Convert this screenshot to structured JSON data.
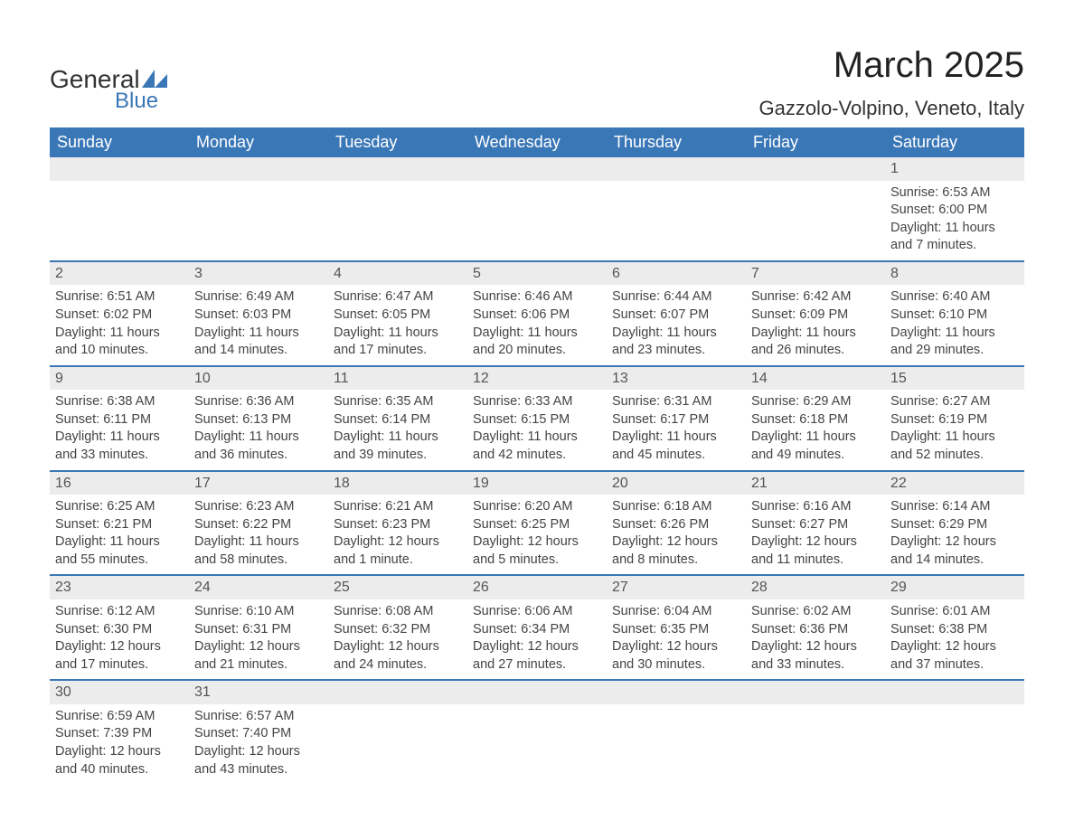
{
  "logo": {
    "text1": "General",
    "text2": "Blue",
    "accent_color": "#3a77b7"
  },
  "title": "March 2025",
  "location": "Gazzolo-Volpino, Veneto, Italy",
  "colors": {
    "header_bg": "#3a77b7",
    "header_text": "#ffffff",
    "daynum_bg": "#ececec",
    "row_border": "#3a77b7",
    "body_text": "#444444"
  },
  "day_headers": [
    "Sunday",
    "Monday",
    "Tuesday",
    "Wednesday",
    "Thursday",
    "Friday",
    "Saturday"
  ],
  "weeks": [
    [
      null,
      null,
      null,
      null,
      null,
      null,
      {
        "n": "1",
        "sunrise": "6:53 AM",
        "sunset": "6:00 PM",
        "daylight": "11 hours and 7 minutes."
      }
    ],
    [
      {
        "n": "2",
        "sunrise": "6:51 AM",
        "sunset": "6:02 PM",
        "daylight": "11 hours and 10 minutes."
      },
      {
        "n": "3",
        "sunrise": "6:49 AM",
        "sunset": "6:03 PM",
        "daylight": "11 hours and 14 minutes."
      },
      {
        "n": "4",
        "sunrise": "6:47 AM",
        "sunset": "6:05 PM",
        "daylight": "11 hours and 17 minutes."
      },
      {
        "n": "5",
        "sunrise": "6:46 AM",
        "sunset": "6:06 PM",
        "daylight": "11 hours and 20 minutes."
      },
      {
        "n": "6",
        "sunrise": "6:44 AM",
        "sunset": "6:07 PM",
        "daylight": "11 hours and 23 minutes."
      },
      {
        "n": "7",
        "sunrise": "6:42 AM",
        "sunset": "6:09 PM",
        "daylight": "11 hours and 26 minutes."
      },
      {
        "n": "8",
        "sunrise": "6:40 AM",
        "sunset": "6:10 PM",
        "daylight": "11 hours and 29 minutes."
      }
    ],
    [
      {
        "n": "9",
        "sunrise": "6:38 AM",
        "sunset": "6:11 PM",
        "daylight": "11 hours and 33 minutes."
      },
      {
        "n": "10",
        "sunrise": "6:36 AM",
        "sunset": "6:13 PM",
        "daylight": "11 hours and 36 minutes."
      },
      {
        "n": "11",
        "sunrise": "6:35 AM",
        "sunset": "6:14 PM",
        "daylight": "11 hours and 39 minutes."
      },
      {
        "n": "12",
        "sunrise": "6:33 AM",
        "sunset": "6:15 PM",
        "daylight": "11 hours and 42 minutes."
      },
      {
        "n": "13",
        "sunrise": "6:31 AM",
        "sunset": "6:17 PM",
        "daylight": "11 hours and 45 minutes."
      },
      {
        "n": "14",
        "sunrise": "6:29 AM",
        "sunset": "6:18 PM",
        "daylight": "11 hours and 49 minutes."
      },
      {
        "n": "15",
        "sunrise": "6:27 AM",
        "sunset": "6:19 PM",
        "daylight": "11 hours and 52 minutes."
      }
    ],
    [
      {
        "n": "16",
        "sunrise": "6:25 AM",
        "sunset": "6:21 PM",
        "daylight": "11 hours and 55 minutes."
      },
      {
        "n": "17",
        "sunrise": "6:23 AM",
        "sunset": "6:22 PM",
        "daylight": "11 hours and 58 minutes."
      },
      {
        "n": "18",
        "sunrise": "6:21 AM",
        "sunset": "6:23 PM",
        "daylight": "12 hours and 1 minute."
      },
      {
        "n": "19",
        "sunrise": "6:20 AM",
        "sunset": "6:25 PM",
        "daylight": "12 hours and 5 minutes."
      },
      {
        "n": "20",
        "sunrise": "6:18 AM",
        "sunset": "6:26 PM",
        "daylight": "12 hours and 8 minutes."
      },
      {
        "n": "21",
        "sunrise": "6:16 AM",
        "sunset": "6:27 PM",
        "daylight": "12 hours and 11 minutes."
      },
      {
        "n": "22",
        "sunrise": "6:14 AM",
        "sunset": "6:29 PM",
        "daylight": "12 hours and 14 minutes."
      }
    ],
    [
      {
        "n": "23",
        "sunrise": "6:12 AM",
        "sunset": "6:30 PM",
        "daylight": "12 hours and 17 minutes."
      },
      {
        "n": "24",
        "sunrise": "6:10 AM",
        "sunset": "6:31 PM",
        "daylight": "12 hours and 21 minutes."
      },
      {
        "n": "25",
        "sunrise": "6:08 AM",
        "sunset": "6:32 PM",
        "daylight": "12 hours and 24 minutes."
      },
      {
        "n": "26",
        "sunrise": "6:06 AM",
        "sunset": "6:34 PM",
        "daylight": "12 hours and 27 minutes."
      },
      {
        "n": "27",
        "sunrise": "6:04 AM",
        "sunset": "6:35 PM",
        "daylight": "12 hours and 30 minutes."
      },
      {
        "n": "28",
        "sunrise": "6:02 AM",
        "sunset": "6:36 PM",
        "daylight": "12 hours and 33 minutes."
      },
      {
        "n": "29",
        "sunrise": "6:01 AM",
        "sunset": "6:38 PM",
        "daylight": "12 hours and 37 minutes."
      }
    ],
    [
      {
        "n": "30",
        "sunrise": "6:59 AM",
        "sunset": "7:39 PM",
        "daylight": "12 hours and 40 minutes."
      },
      {
        "n": "31",
        "sunrise": "6:57 AM",
        "sunset": "7:40 PM",
        "daylight": "12 hours and 43 minutes."
      },
      null,
      null,
      null,
      null,
      null
    ]
  ],
  "labels": {
    "sunrise": "Sunrise: ",
    "sunset": "Sunset: ",
    "daylight": "Daylight: "
  }
}
